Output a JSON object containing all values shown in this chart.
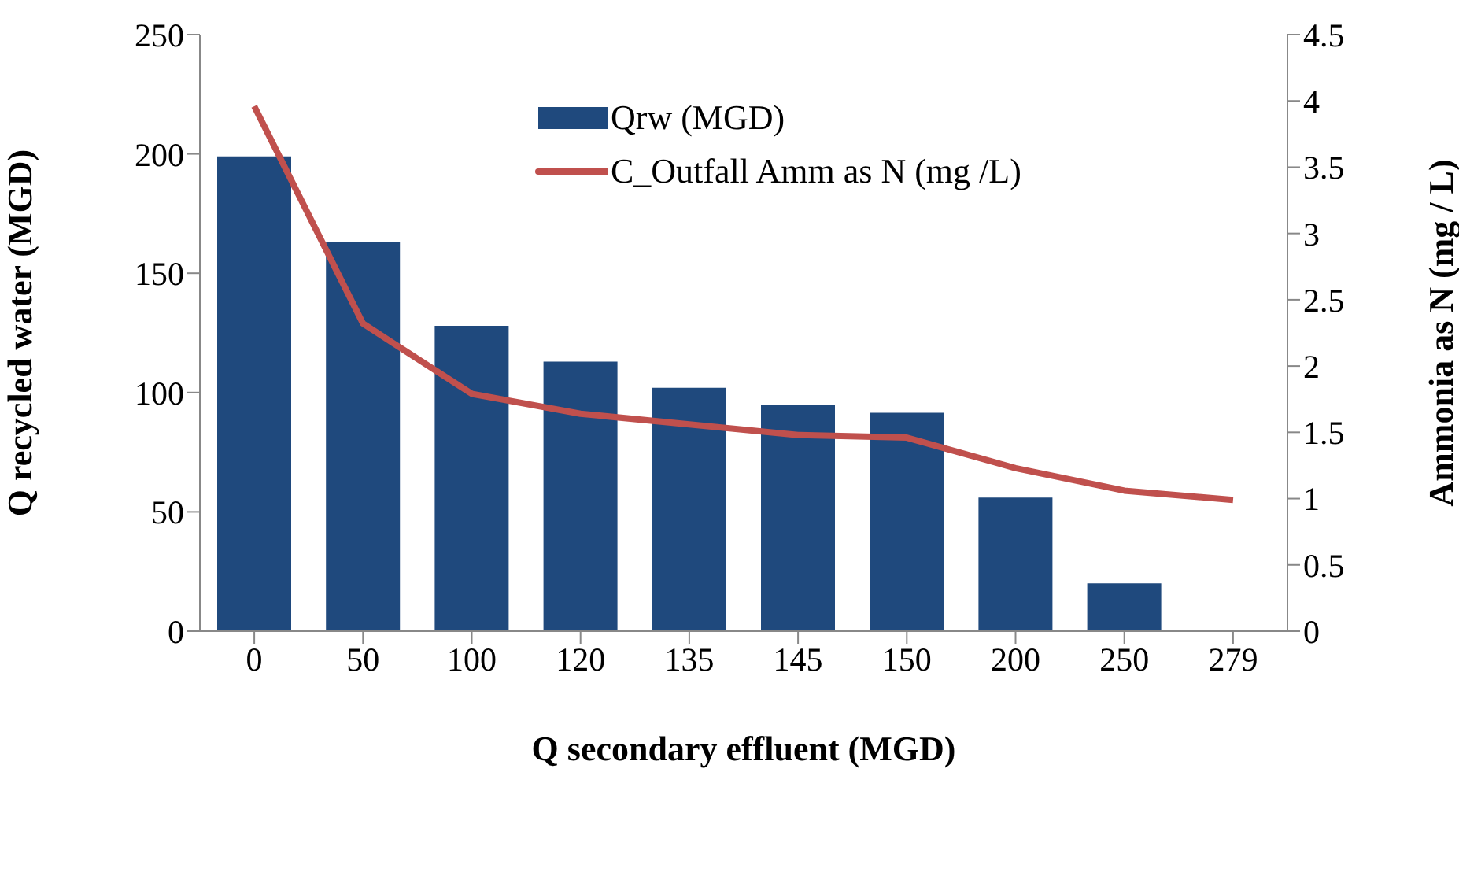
{
  "chart_data": {
    "type": "bar",
    "xlabel": "Q secondary effluent (MGD)",
    "ylabel": "Q recycled water (MGD)",
    "y2label": "Ammonia as N (mg / L)",
    "categories": [
      "0",
      "50",
      "100",
      "120",
      "135",
      "145",
      "150",
      "200",
      "250",
      "279"
    ],
    "series": [
      {
        "name": "Qrw (MGD)",
        "color": "#1f497d",
        "values": [
          199,
          163,
          128,
          113,
          102,
          95,
          91.5,
          56,
          20,
          null
        ]
      },
      {
        "name": "C_Outfall Amm as N (mg /L)",
        "type": "line",
        "axis": "y2",
        "color": "#c0504d",
        "values": [
          3.96,
          2.32,
          1.79,
          1.64,
          1.56,
          1.48,
          1.46,
          1.23,
          1.06,
          0.99
        ]
      }
    ],
    "ylim": [
      0,
      250
    ],
    "yticks": [
      0,
      50,
      100,
      150,
      200,
      250
    ],
    "y2lim": [
      0,
      4.5
    ],
    "y2ticks": [
      0,
      0.5,
      1,
      1.5,
      2,
      2.5,
      3,
      3.5,
      4,
      4.5
    ],
    "grid": false,
    "legend": "top",
    "marker": "none",
    "line_style": "solid"
  }
}
